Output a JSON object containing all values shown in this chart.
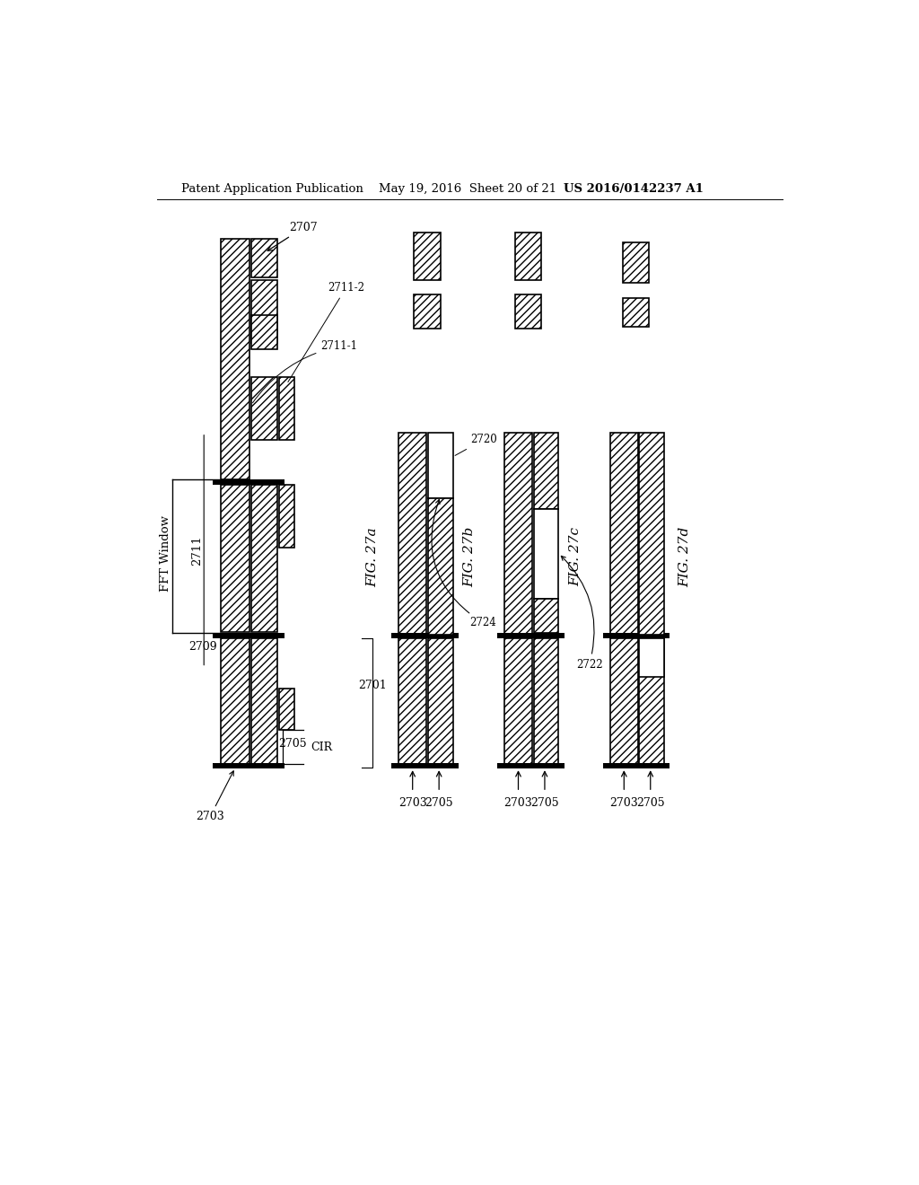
{
  "header_left": "Patent Application Publication",
  "header_mid": "May 19, 2016  Sheet 20 of 21",
  "header_right": "US 2016/0142237 A1",
  "bg_color": "#ffffff"
}
